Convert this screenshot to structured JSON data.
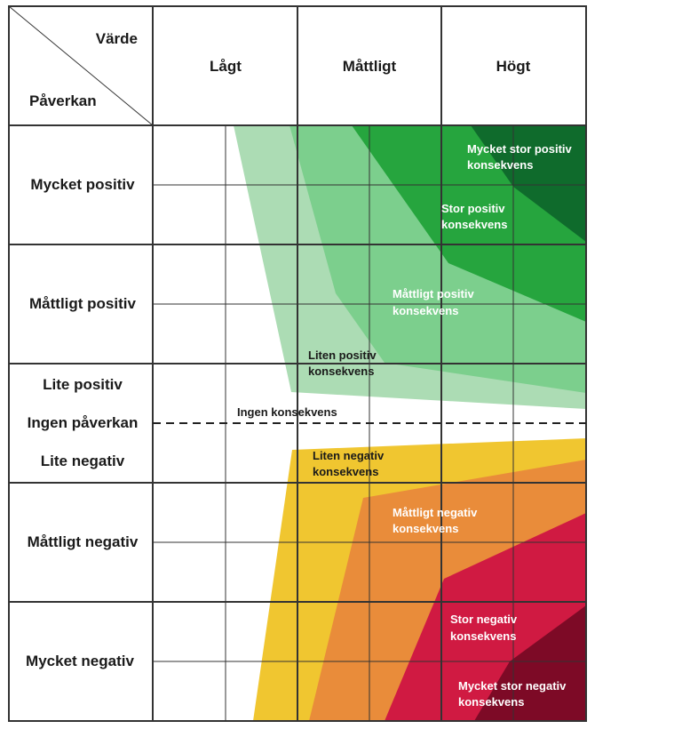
{
  "corner": {
    "value_label": "Värde",
    "impact_label": "Påverkan"
  },
  "columns": [
    "Lågt",
    "Måttligt",
    "Högt"
  ],
  "rows": [
    "Mycket positiv",
    "Måttligt positiv",
    "Lite positiv",
    "Ingen påverkan",
    "Lite negativ",
    "Måttligt negativ",
    "Mycket negativ"
  ],
  "zones": {
    "very_large_positive": {
      "line1": "Mycket stor positiv",
      "line2": "konsekvens",
      "color": "#0f6b2c"
    },
    "large_positive": {
      "line1": "Stor positiv",
      "line2": "konsekvens",
      "color": "#26a53e"
    },
    "moderate_positive": {
      "line1": "Måttligt positiv",
      "line2": "konsekvens",
      "color": "#7ccf8d"
    },
    "small_positive": {
      "line1": "Liten positiv",
      "line2": "konsekvens",
      "color": "#acdcb4"
    },
    "none": {
      "line1": "Ingen konsekvens"
    },
    "small_negative": {
      "line1": "Liten negativ",
      "line2": "konsekvens",
      "color": "#f0c630"
    },
    "moderate_negative": {
      "line1": "Måttligt negativ",
      "line2": "konsekvens",
      "color": "#e98c3a"
    },
    "large_negative": {
      "line1": "Stor negativ",
      "line2": "konsekvens",
      "color": "#d01a42"
    },
    "very_large_negative": {
      "line1": "Mycket stor negativ",
      "line2": "konsekvens",
      "color": "#7d0a26"
    }
  }
}
